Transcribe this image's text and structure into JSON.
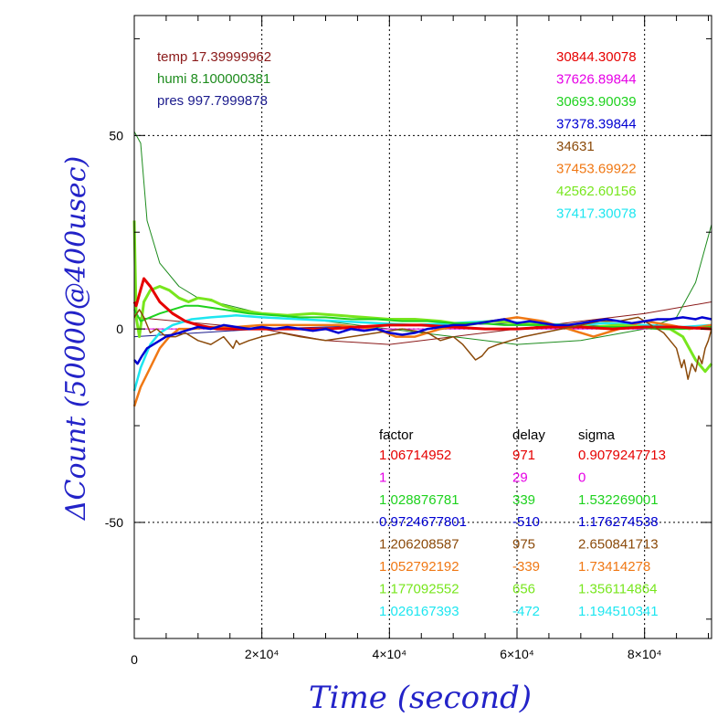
{
  "chart_data": {
    "type": "line",
    "xlabel": "Time (second)",
    "ylabel": "ΔCount (50000@400usec)",
    "xlim": [
      0,
      90500
    ],
    "ylim": [
      -80,
      81
    ],
    "grid": true,
    "grid_style": "dotted",
    "x_ticks": [
      {
        "value": 0,
        "label": "0"
      },
      {
        "value": 20000,
        "label": "2×10⁴"
      },
      {
        "value": 40000,
        "label": "4×10⁴"
      },
      {
        "value": 60000,
        "label": "6×10⁴"
      },
      {
        "value": 80000,
        "label": "8×10⁴"
      }
    ],
    "y_ticks": [
      {
        "value": 50,
        "label": "50"
      },
      {
        "value": 0,
        "label": "0"
      },
      {
        "value": -50,
        "label": "-50"
      }
    ],
    "environment": [
      {
        "label": "temp 17.39999962",
        "color": "#8b1a1a"
      },
      {
        "label": "humi 8.100000381",
        "color": "#1e8c1e"
      },
      {
        "label": "pres 997.7999878",
        "color": "#1a1a8c"
      }
    ],
    "environment_series": [
      {
        "color": "#8b1a1a",
        "x": [
          0,
          10000,
          20000,
          30000,
          40000,
          50000,
          60000,
          70000,
          80000,
          90500
        ],
        "y": [
          3,
          1.5,
          0,
          -3,
          -4,
          -2,
          0,
          2,
          4,
          7
        ]
      },
      {
        "color": "#1e8c1e",
        "x": [
          0,
          1000,
          2000,
          4000,
          7000,
          10000,
          15000,
          20000,
          30000,
          40000,
          50000,
          60000,
          70000,
          80000,
          85000,
          88000,
          90500
        ],
        "y": [
          51,
          48,
          28,
          17,
          11,
          8,
          6,
          4,
          2,
          0,
          -2,
          -4,
          -3,
          0,
          3,
          12,
          27
        ]
      },
      {
        "color": "#1a1a8c",
        "x": [
          0,
          10000,
          20000,
          30000,
          40000,
          50000,
          60000,
          70000,
          80000,
          90500
        ],
        "y": [
          -2,
          -1,
          0,
          0.5,
          1,
          1,
          1.5,
          1,
          0.5,
          0.5
        ]
      }
    ],
    "counter_values": [
      {
        "label": "30844.30078",
        "color": "#e60000"
      },
      {
        "label": "37626.89844",
        "color": "#e600e6"
      },
      {
        "label": "30693.90039",
        "color": "#1ed21e"
      },
      {
        "label": "37378.39844",
        "color": "#0000d2"
      },
      {
        "label": "34631",
        "color": "#8b4a0a"
      },
      {
        "label": "37453.69922",
        "color": "#f07814"
      },
      {
        "label": "42562.60156",
        "color": "#78e61e"
      },
      {
        "label": "37417.30078",
        "color": "#1ee6f0"
      }
    ],
    "table": {
      "headers": [
        "factor",
        "delay",
        "sigma"
      ],
      "rows": [
        {
          "factor": "1.06714952",
          "delay": "971",
          "sigma": "0.9079247713",
          "color": "#e60000"
        },
        {
          "factor": "1",
          "delay": "29",
          "sigma": "0",
          "color": "#e600e6"
        },
        {
          "factor": "1.028876781",
          "delay": "339",
          "sigma": "1.532269001",
          "color": "#1ed21e"
        },
        {
          "factor": "0.9724677801",
          "delay": "-510",
          "sigma": "1.176274538",
          "color": "#0000d2"
        },
        {
          "factor": "1.206208587",
          "delay": "975",
          "sigma": "2.650841713",
          "color": "#8b4a0a"
        },
        {
          "factor": "1.052792192",
          "delay": "-339",
          "sigma": "1.73414278",
          "color": "#f07814"
        },
        {
          "factor": "1.177092552",
          "delay": "656",
          "sigma": "1.356114864",
          "color": "#78e61e"
        },
        {
          "factor": "1.026167393",
          "delay": "-472",
          "sigma": "1.194510341",
          "color": "#1ee6f0"
        }
      ]
    },
    "series": [
      {
        "color": "#e600e6",
        "width": 1,
        "x": [
          0,
          90500
        ],
        "y": [
          0,
          0
        ]
      },
      {
        "color": "#1ee6f0",
        "width": 2.5,
        "x": [
          0,
          1000,
          2500,
          4000,
          6000,
          9000,
          12000,
          16000,
          20000,
          26000,
          32000,
          38000,
          44000,
          50000,
          56000,
          62000,
          68000,
          74000,
          80000,
          86000,
          90500
        ],
        "y": [
          -16,
          -10,
          -4,
          -1,
          1,
          2.5,
          3,
          3.5,
          3,
          2.5,
          2,
          1.5,
          1,
          1.5,
          2,
          1.5,
          1,
          1.5,
          1,
          0.5,
          1
        ]
      },
      {
        "color": "#f07814",
        "width": 2.5,
        "x": [
          0,
          1000,
          2500,
          4000,
          5500,
          7000,
          9000,
          12000,
          16000,
          20000,
          26000,
          32000,
          38000,
          41000,
          44000,
          48000,
          52000,
          56000,
          60000,
          64000,
          68000,
          72000,
          76000,
          80000,
          84000,
          87000,
          90500
        ],
        "y": [
          -20,
          -15,
          -10,
          -5,
          -2,
          0,
          0,
          0.5,
          0.5,
          1,
          1,
          1,
          0,
          -2,
          -2,
          0,
          1,
          2,
          3,
          2,
          0,
          -2,
          0,
          2,
          1,
          0,
          1
        ]
      },
      {
        "color": "#78e61e",
        "width": 3,
        "x": [
          0,
          300,
          800,
          1500,
          2500,
          4000,
          5500,
          7000,
          8500,
          10000,
          12000,
          14000,
          16000,
          18000,
          20000,
          24000,
          28000,
          32000,
          36000,
          40000,
          44000,
          48000,
          52000,
          56000,
          60000,
          64000,
          68000,
          72000,
          76000,
          80000,
          84000,
          86000,
          88000,
          89500,
          90500
        ],
        "y": [
          28,
          3,
          -2,
          7,
          10,
          11,
          10,
          8,
          7,
          8,
          7.5,
          6,
          5,
          4.5,
          4,
          3.5,
          4,
          3.5,
          3,
          2.5,
          2.5,
          2,
          1,
          2,
          1.5,
          1,
          1,
          0.5,
          1,
          0.5,
          0,
          -2,
          -8,
          -11,
          -9
        ]
      },
      {
        "color": "#1ed21e",
        "width": 2,
        "x": [
          0,
          1000,
          2500,
          4000,
          6000,
          8000,
          10000,
          14000,
          18000,
          22000,
          26000,
          30000,
          34000,
          38000,
          42000,
          46000,
          50000,
          54000,
          58000,
          62000,
          66000,
          70000,
          74000,
          78000,
          82000,
          86000,
          90500
        ],
        "y": [
          5,
          2,
          3,
          4,
          5,
          6,
          6,
          5,
          4,
          3.5,
          3,
          3,
          2.5,
          2.5,
          2,
          2,
          1.5,
          1.5,
          1,
          1,
          1,
          0.5,
          0.5,
          0.5,
          0,
          0,
          0.5
        ]
      },
      {
        "color": "#e60000",
        "width": 3,
        "x": [
          0,
          300,
          800,
          1500,
          2500,
          4000,
          6000,
          8000,
          10000,
          13000,
          16000,
          20000,
          25000,
          30000,
          35000,
          40000,
          45000,
          50000,
          55000,
          60000,
          65000,
          70000,
          75000,
          80000,
          85000,
          90500
        ],
        "y": [
          7,
          6,
          9,
          13,
          11,
          7,
          4,
          2,
          1,
          0,
          0,
          0,
          0,
          0,
          0.5,
          1,
          1,
          0.5,
          0,
          0,
          0.5,
          0.5,
          0,
          0.5,
          0.5,
          0
        ]
      },
      {
        "color": "#8b4a0a",
        "width": 1.5,
        "x": [
          0,
          800,
          1500,
          2500,
          3500,
          5000,
          6500,
          8000,
          10000,
          12000,
          14000,
          15000,
          15500,
          16000,
          16500,
          18000,
          20000,
          23000,
          26000,
          30000,
          34000,
          38000,
          42000,
          46000,
          48000,
          50000,
          51500,
          52500,
          53500,
          54500,
          55500,
          57000,
          59000,
          61000,
          64000,
          67000,
          70000,
          73000,
          76000,
          79000,
          80000,
          81000,
          82000,
          83000,
          84000,
          85000,
          85800,
          86200,
          86800,
          87400,
          88000,
          88500,
          89000,
          89500,
          90000,
          90500
        ],
        "y": [
          3,
          5,
          3,
          -1,
          0,
          -2,
          -2,
          -1,
          -3,
          -4,
          -2,
          -4,
          -5,
          -3,
          -4,
          -3,
          -2,
          -1,
          -2,
          -3,
          -2,
          -1,
          0,
          -1,
          -3,
          -2,
          -4,
          -6,
          -8,
          -7,
          -5,
          -4,
          -3,
          -2,
          -1,
          0,
          1,
          2,
          2,
          3,
          2,
          1,
          0,
          -1,
          -3,
          -5,
          -10,
          -8,
          -13,
          -9,
          -11,
          -7,
          -9,
          -5,
          -3,
          0
        ]
      },
      {
        "color": "#0000d2",
        "width": 2.5,
        "x": [
          0,
          500,
          1200,
          2000,
          3000,
          4000,
          5000,
          6000,
          7000,
          8000,
          9000,
          10000,
          12000,
          14000,
          16000,
          18000,
          20000,
          22000,
          24000,
          26000,
          28000,
          30000,
          32000,
          34000,
          36000,
          38000,
          40000,
          42000,
          44000,
          46000,
          48000,
          50000,
          52000,
          54000,
          56000,
          58000,
          60000,
          62000,
          64000,
          66000,
          68000,
          70000,
          72000,
          74000,
          76000,
          78000,
          80000,
          82000,
          84000,
          86000,
          88000,
          89000,
          90500
        ],
        "y": [
          -8,
          -9,
          -7,
          -5,
          -4,
          -3,
          -2,
          -1.5,
          -1,
          -0.5,
          0,
          0.5,
          0,
          1,
          0.5,
          0,
          0.5,
          0,
          0.5,
          0,
          -0.5,
          0,
          -1,
          0,
          -0.5,
          0,
          -1,
          -1.5,
          -1,
          0,
          0.5,
          1,
          1,
          1.5,
          2,
          2.5,
          1.5,
          2,
          1.5,
          1,
          1,
          1.5,
          2,
          2.5,
          2,
          1.5,
          2,
          2.5,
          2.5,
          3,
          2.5,
          3,
          2.5
        ]
      }
    ]
  }
}
